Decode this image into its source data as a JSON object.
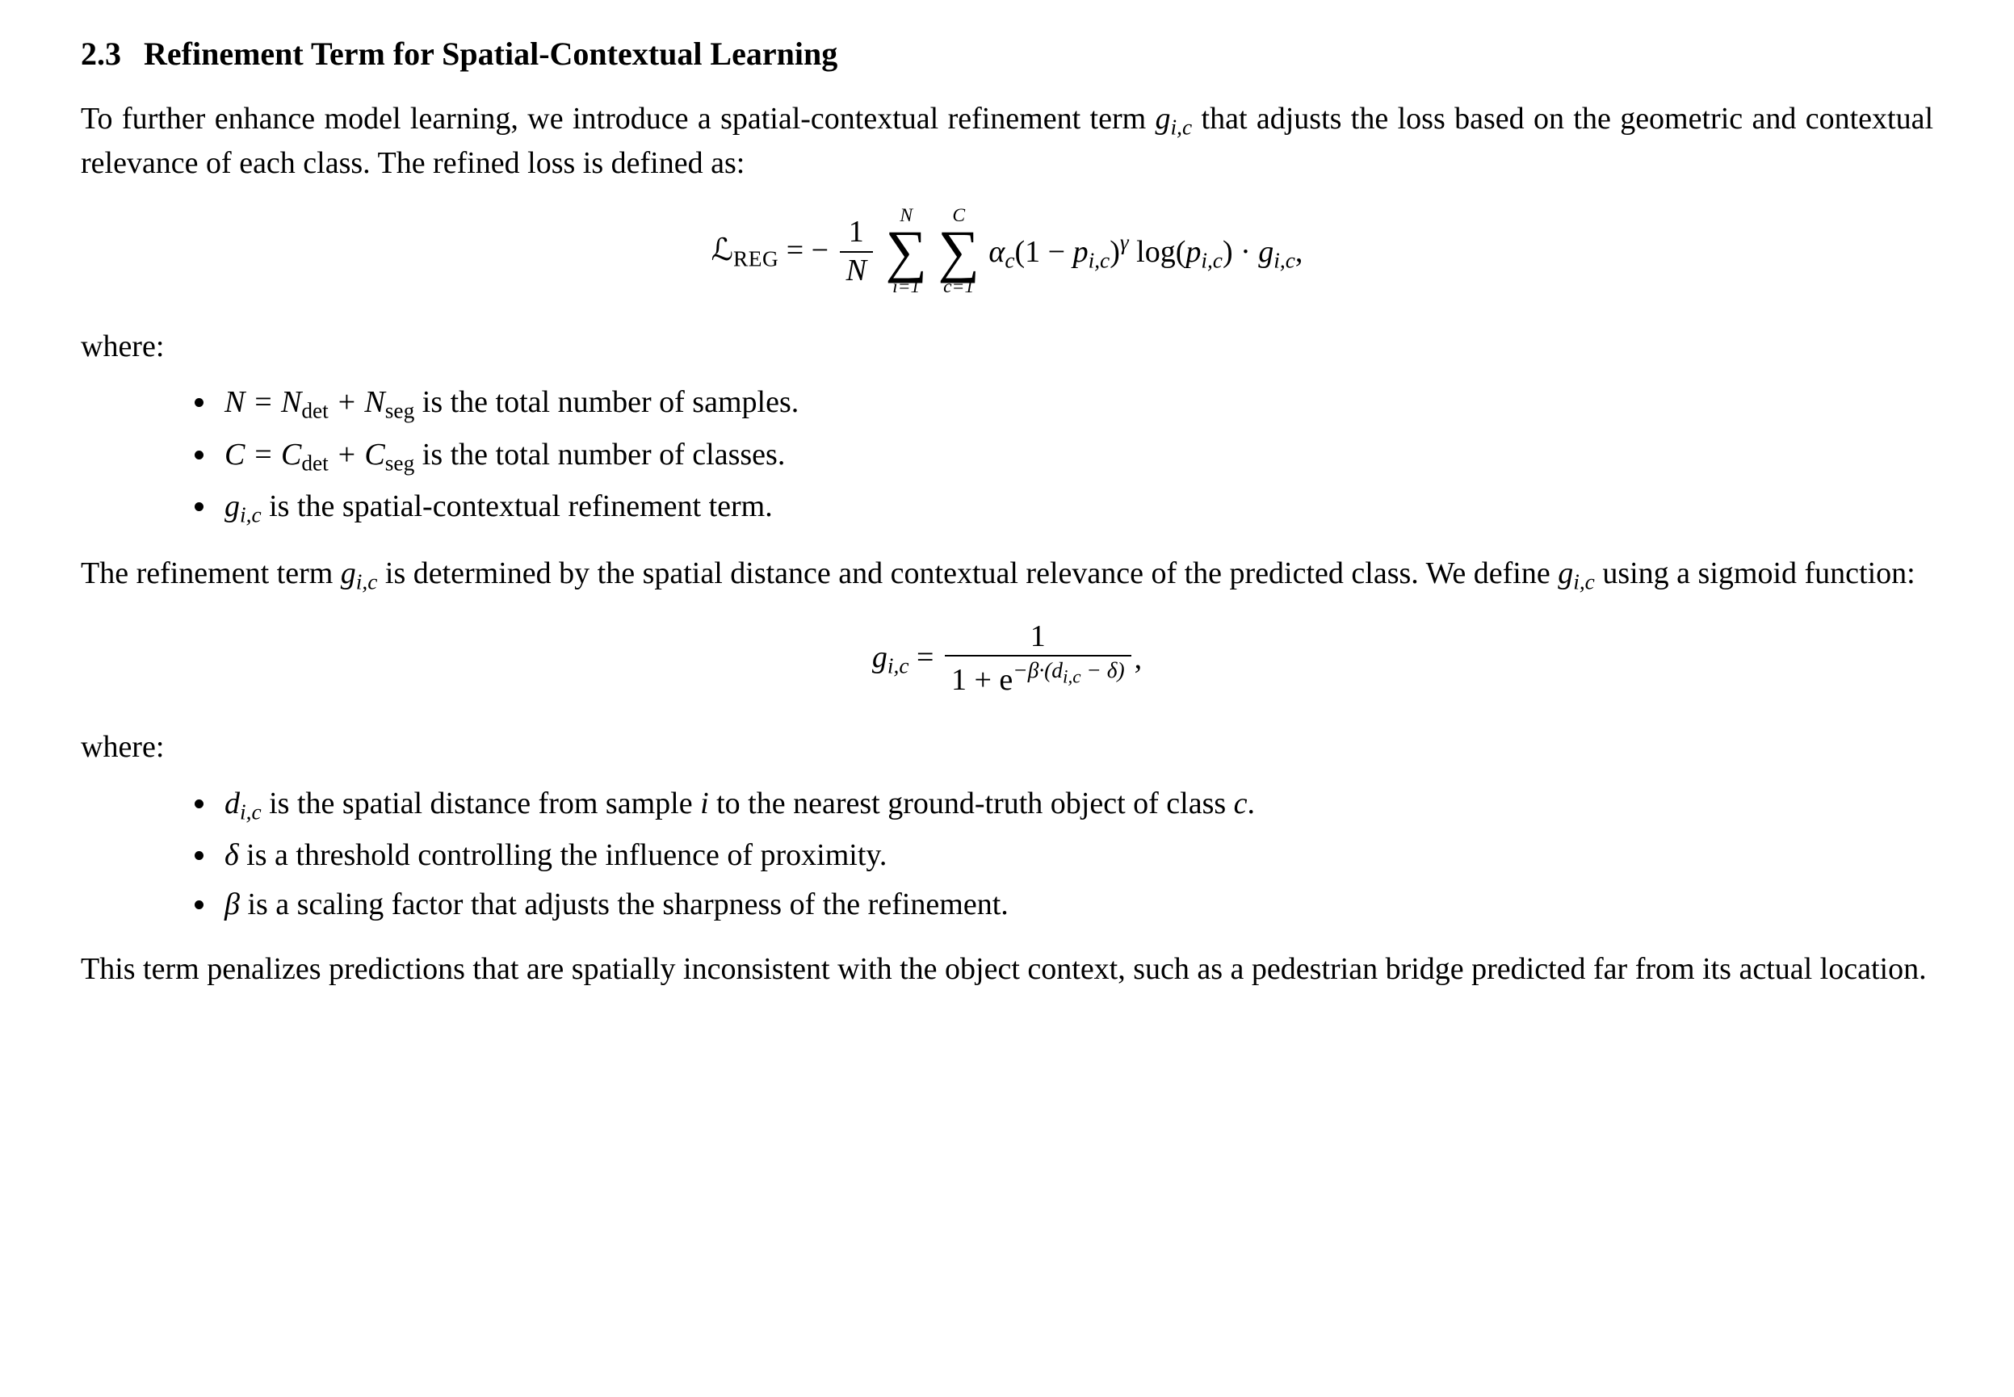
{
  "colors": {
    "text": "#000000",
    "background": "#ffffff"
  },
  "typography": {
    "body_family": "Times New Roman",
    "body_size_pt": 19,
    "heading_size_pt": 20,
    "heading_weight": "bold"
  },
  "section": {
    "number": "2.3",
    "title": "Refinement Term for Spatial-Contextual Learning"
  },
  "para1_a": "To further enhance model learning, we introduce a spatial-contextual refinement term ",
  "para1_b": " that adjusts the loss based on the geometric and contextual relevance of each class. The refined loss is defined as:",
  "eq1": {
    "lhs_symbol": "ℒ",
    "lhs_sub": "REG",
    "eq": " = ",
    "minus": "−",
    "frac_num": "1",
    "frac_den": "N",
    "sum1_top": "N",
    "sum1_bot": "i=1",
    "sum2_top": "C",
    "sum2_bot": "c=1",
    "alpha": "α",
    "alpha_sub": "c",
    "open": "(1 − ",
    "p": "p",
    "p_sub": "i,c",
    "close": ")",
    "gamma": "γ",
    "log": " log(",
    "p2": "p",
    "p2_sub": "i,c",
    "close2": ") · ",
    "g": "g",
    "g_sub": "i,c",
    "tail": ","
  },
  "where": "where:",
  "bullets1": {
    "b1_a": "N = N",
    "b1_b": " + N",
    "b1_c": " is the total number of samples.",
    "b1_det": "det",
    "b1_seg": "seg",
    "b2_a": "C = C",
    "b2_b": " + C",
    "b2_c": " is the total number of classes.",
    "b3_a": "g",
    "b3_sub": "i,c",
    "b3_b": " is the spatial-contextual refinement term."
  },
  "para2_a": "The refinement term ",
  "para2_b": " is determined by the spatial distance and contextual relevance of the predicted class. We define ",
  "para2_c": " using a sigmoid function:",
  "eq2": {
    "g": "g",
    "g_sub": "i,c",
    "eq": " = ",
    "num": "1",
    "den_a": "1 + e",
    "den_exp_a": "−β·(d",
    "den_exp_sub": "i,c",
    "den_exp_b": " − δ)",
    "tail": ","
  },
  "bullets2": {
    "b1_a": "d",
    "b1_sub": "i,c",
    "b1_b": " is the spatial distance from sample ",
    "b1_i": "i",
    "b1_c": " to the nearest ground-truth object of class ",
    "b1_cvar": "c",
    "b1_d": ".",
    "b2_a": "δ",
    "b2_b": " is a threshold controlling the influence of proximity.",
    "b3_a": "β",
    "b3_b": " is a scaling factor that adjusts the sharpness of the refinement."
  },
  "para3": "This term penalizes predictions that are spatially inconsistent with the object context, such as a pedestrian bridge predicted far from its actual location."
}
